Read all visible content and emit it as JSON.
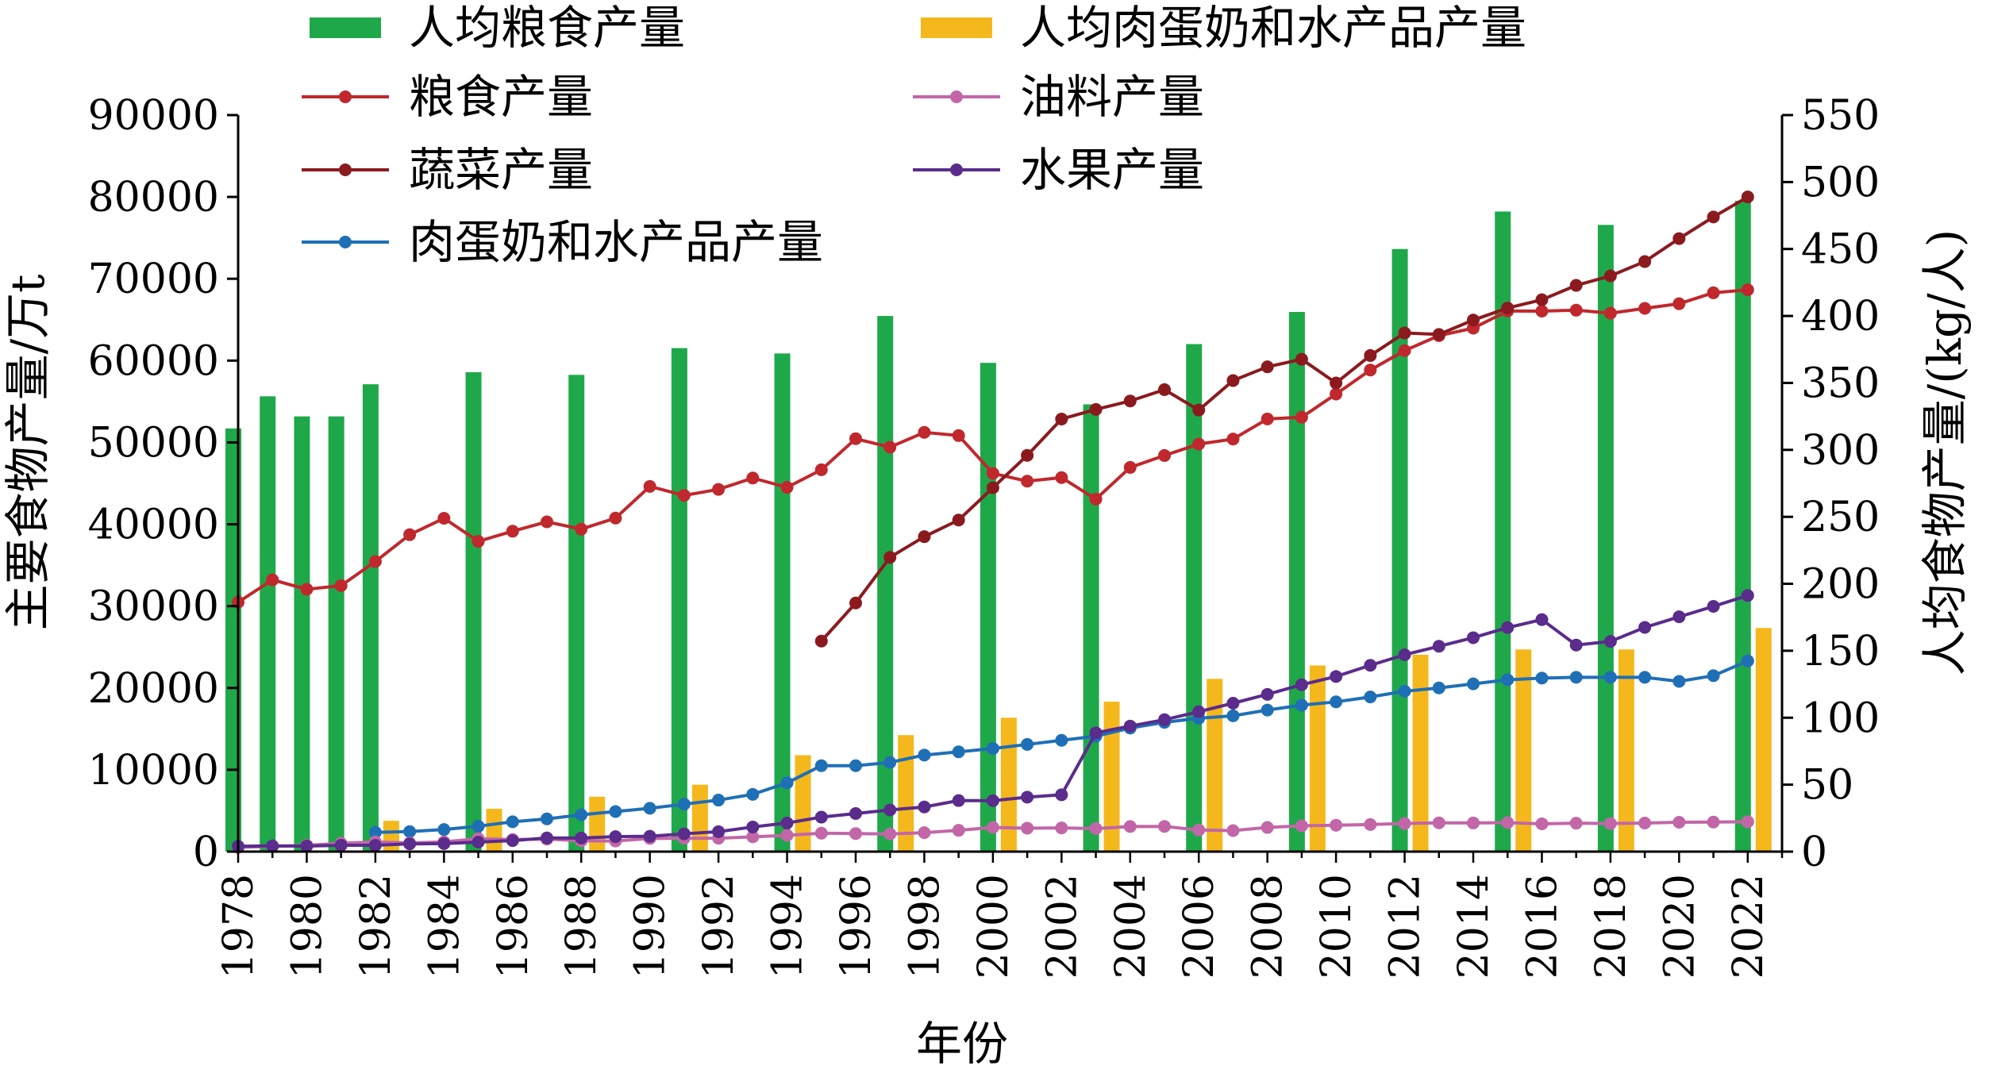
{
  "chart_data": {
    "type": "bar",
    "x_axis": {
      "label": "年份",
      "ticks": [
        "1978",
        "1980",
        "1982",
        "1984",
        "1986",
        "1988",
        "1990",
        "1992",
        "1994",
        "1996",
        "1998",
        "2000",
        "2002",
        "2004",
        "2006",
        "2008",
        "2010",
        "2012",
        "2014",
        "2016",
        "2018",
        "2020",
        "2022"
      ]
    },
    "y_left": {
      "label": "主要食物产量/万t",
      "range": [
        0,
        90000
      ],
      "ticks": [
        0,
        10000,
        20000,
        30000,
        40000,
        50000,
        60000,
        70000,
        80000,
        90000
      ]
    },
    "y_right": {
      "label": "人均食物产量/(kg/人)",
      "range": [
        0,
        550
      ],
      "ticks": [
        0,
        50,
        100,
        150,
        200,
        250,
        300,
        350,
        400,
        450,
        500,
        550
      ]
    },
    "legend_position": "top",
    "grid": false,
    "bar_series": [
      {
        "name": "人均粮食产量",
        "axis": "right",
        "color": "#1fa84a",
        "points": [
          [
            1978,
            316
          ],
          [
            1979,
            340
          ],
          [
            1980,
            325
          ],
          [
            1981,
            325
          ],
          [
            1982,
            349
          ],
          [
            1985,
            358
          ],
          [
            1988,
            356
          ],
          [
            1991,
            376
          ],
          [
            1994,
            372
          ],
          [
            1997,
            400
          ],
          [
            2000,
            365
          ],
          [
            2003,
            334
          ],
          [
            2006,
            379
          ],
          [
            2009,
            403
          ],
          [
            2012,
            450
          ],
          [
            2015,
            478
          ],
          [
            2018,
            468
          ],
          [
            2022,
            486
          ]
        ]
      },
      {
        "name": "人均肉蛋奶和水产品产量",
        "axis": "right",
        "color": "#f5b81c",
        "points": [
          [
            1982,
            23
          ],
          [
            1985,
            32
          ],
          [
            1988,
            41
          ],
          [
            1991,
            50
          ],
          [
            1994,
            72
          ],
          [
            1997,
            87
          ],
          [
            2000,
            100
          ],
          [
            2003,
            112
          ],
          [
            2006,
            129
          ],
          [
            2009,
            139
          ],
          [
            2012,
            147
          ],
          [
            2015,
            151
          ],
          [
            2018,
            151
          ],
          [
            2022,
            167
          ]
        ]
      }
    ],
    "line_series": [
      {
        "name": "粮食产量",
        "axis": "left",
        "color": "#c0282d",
        "x": [
          1978,
          1979,
          1980,
          1981,
          1982,
          1983,
          1984,
          1985,
          1986,
          1987,
          1988,
          1989,
          1990,
          1991,
          1992,
          1993,
          1994,
          1995,
          1996,
          1997,
          1998,
          1999,
          2000,
          2001,
          2002,
          2003,
          2004,
          2005,
          2006,
          2007,
          2008,
          2009,
          2010,
          2011,
          2012,
          2013,
          2014,
          2015,
          2016,
          2017,
          2018,
          2019,
          2020,
          2021,
          2022
        ],
        "y": [
          30477,
          33212,
          32056,
          32502,
          35450,
          38728,
          40731,
          37911,
          39151,
          40298,
          39408,
          40755,
          44624,
          43529,
          44266,
          45649,
          44510,
          46662,
          50454,
          49417,
          51230,
          50839,
          46218,
          45264,
          45706,
          43070,
          46947,
          48402,
          49804,
          50414,
          52871,
          53082,
          55911,
          58849,
          61223,
          63048,
          63965,
          66060,
          66044,
          66161,
          65789,
          66384,
          66949,
          68285,
          68653
        ]
      },
      {
        "name": "蔬菜产量",
        "axis": "left",
        "color": "#8b1a1f",
        "x": [
          1995,
          1996,
          1997,
          1998,
          1999,
          2000,
          2001,
          2002,
          2003,
          2004,
          2005,
          2006,
          2007,
          2008,
          2009,
          2010,
          2011,
          2012,
          2013,
          2014,
          2015,
          2016,
          2017,
          2018,
          2019,
          2020,
          2021,
          2022
        ],
        "y": [
          25727,
          30379,
          35962,
          38486,
          40514,
          44468,
          48422,
          52860,
          54032,
          55065,
          56452,
          53953,
          57564,
          59240,
          60160,
          57265,
          60622,
          63375,
          63198,
          64949,
          66425,
          67434,
          69193,
          70347,
          72103,
          74913,
          77549,
          79997
        ]
      },
      {
        "name": "肉蛋奶和水产品产量",
        "axis": "left",
        "color": "#1f6fb6",
        "x": [
          1982,
          1983,
          1984,
          1985,
          1986,
          1987,
          1988,
          1989,
          1990,
          1991,
          1992,
          1993,
          1994,
          1995,
          1996,
          1997,
          1998,
          1999,
          2000,
          2001,
          2002,
          2003,
          2004,
          2005,
          2006,
          2007,
          2008,
          2009,
          2010,
          2011,
          2012,
          2013,
          2014,
          2015,
          2016,
          2017,
          2018,
          2019,
          2020,
          2021,
          2022
        ],
        "y": [
          2350,
          2450,
          2700,
          3100,
          3650,
          4000,
          4500,
          4900,
          5300,
          5800,
          6300,
          7000,
          8400,
          10500,
          10500,
          10900,
          11800,
          12200,
          12600,
          13100,
          13600,
          14100,
          15100,
          15800,
          16300,
          16600,
          17300,
          17900,
          18300,
          18900,
          19600,
          20000,
          20500,
          21000,
          21200,
          21300,
          21300,
          21300,
          20800,
          21500,
          23300
        ]
      },
      {
        "name": "油料产量",
        "axis": "left",
        "color": "#c266a8",
        "x": [
          1978,
          1979,
          1980,
          1981,
          1982,
          1983,
          1984,
          1985,
          1986,
          1987,
          1988,
          1989,
          1990,
          1991,
          1992,
          1993,
          1994,
          1995,
          1996,
          1997,
          1998,
          1999,
          2000,
          2001,
          2002,
          2003,
          2004,
          2005,
          2006,
          2007,
          2008,
          2009,
          2010,
          2011,
          2012,
          2013,
          2014,
          2015,
          2016,
          2017,
          2018,
          2019,
          2020,
          2021,
          2022
        ],
        "y": [
          522,
          644,
          769,
          1021,
          1182,
          1055,
          1191,
          1578,
          1474,
          1528,
          1320,
          1295,
          1613,
          1638,
          1641,
          1804,
          1990,
          2250,
          2210,
          2157,
          2314,
          2601,
          2955,
          2865,
          2897,
          2811,
          3066,
          3077,
          2640,
          2569,
          2953,
          3154,
          3230,
          3307,
          3437,
          3517,
          3507,
          3537,
          3400,
          3475,
          3433,
          3493,
          3586,
          3613,
          3654
        ]
      },
      {
        "name": "水果产量",
        "axis": "left",
        "color": "#5a2c8c",
        "x": [
          1978,
          1979,
          1980,
          1981,
          1982,
          1983,
          1984,
          1985,
          1986,
          1987,
          1988,
          1989,
          1990,
          1991,
          1992,
          1993,
          1994,
          1995,
          1996,
          1997,
          1998,
          1999,
          2000,
          2001,
          2002,
          2003,
          2004,
          2005,
          2006,
          2007,
          2008,
          2009,
          2010,
          2011,
          2012,
          2013,
          2014,
          2015,
          2016,
          2017,
          2018,
          2019,
          2020,
          2021,
          2022
        ],
        "y": [
          657,
          701,
          679,
          780,
          771,
          948,
          985,
          1164,
          1348,
          1668,
          1666,
          1832,
          1874,
          2176,
          2440,
          3011,
          3500,
          4215,
          4653,
          5089,
          5453,
          6238,
          6225,
          6658,
          6952,
          14517,
          15341,
          16120,
          17102,
          18136,
          19220,
          20396,
          21401,
          22768,
          24057,
          25093,
          26142,
          27375,
          28351,
          25241,
          25688,
          27401,
          28692,
          29970,
          31296
        ]
      }
    ],
    "legend": [
      {
        "label": "人均粮食产量",
        "type": "bar",
        "color": "#1fa84a"
      },
      {
        "label": "人均肉蛋奶和水产品产量",
        "type": "bar",
        "color": "#f5b81c"
      },
      {
        "label": "粮食产量",
        "type": "line",
        "color": "#c0282d"
      },
      {
        "label": "油料产量",
        "type": "line",
        "color": "#c266a8"
      },
      {
        "label": "蔬菜产量",
        "type": "line",
        "color": "#8b1a1f"
      },
      {
        "label": "水果产量",
        "type": "line",
        "color": "#5a2c8c"
      },
      {
        "label": "肉蛋奶和水产品产量",
        "type": "line",
        "color": "#1f6fb6"
      }
    ]
  }
}
